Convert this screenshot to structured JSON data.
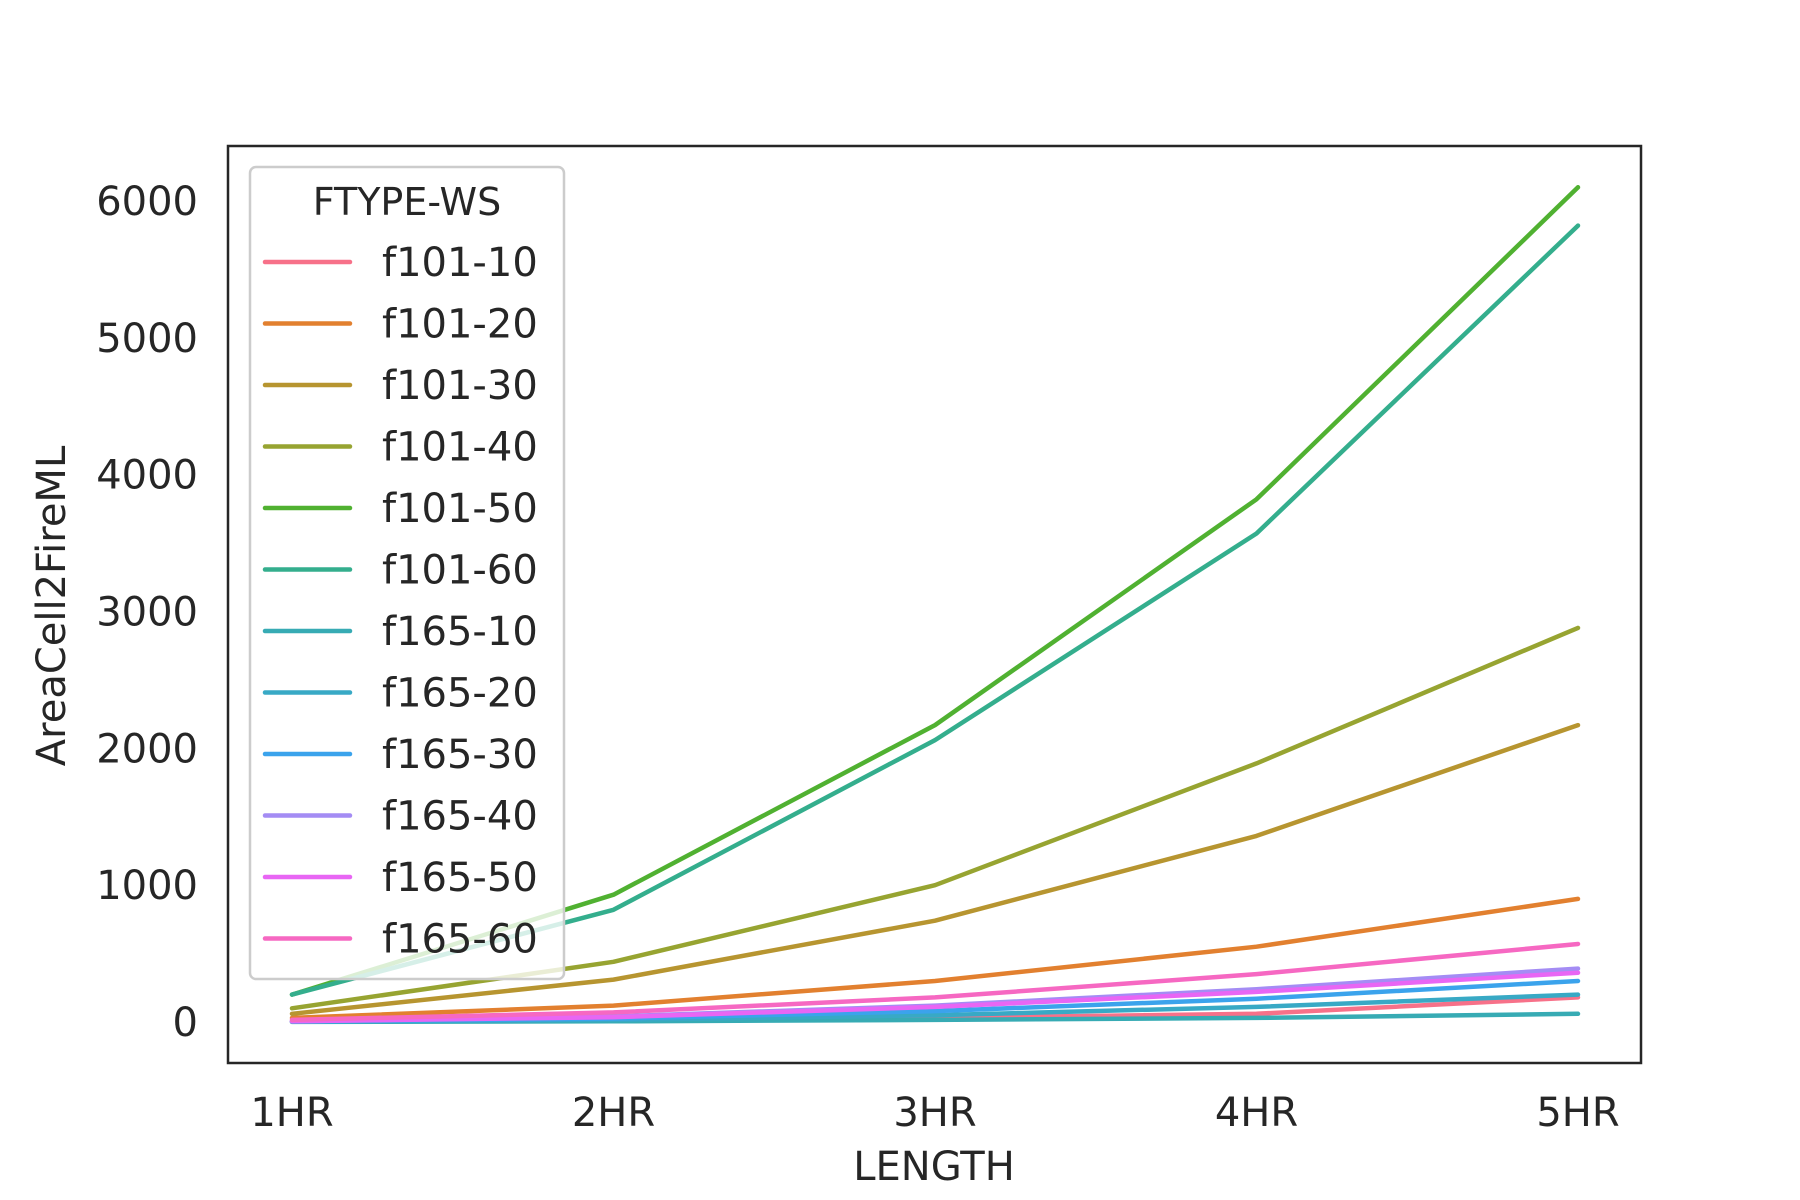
{
  "chart_data": {
    "type": "line",
    "title": "",
    "xlabel": "LENGTH",
    "ylabel": "AreaCell2FireML",
    "categories": [
      "1HR",
      "2HR",
      "3HR",
      "4HR",
      "5HR"
    ],
    "ylim": [
      -300,
      6400
    ],
    "yticks": [
      0,
      1000,
      2000,
      3000,
      4000,
      5000,
      6000
    ],
    "grid": false,
    "legend": {
      "title": "FTYPE-WS",
      "placement": "top-left"
    },
    "series": [
      {
        "name": "f101-10",
        "color": "#f77189",
        "values": [
          2,
          10,
          30,
          60,
          180
        ]
      },
      {
        "name": "f101-20",
        "color": "#e2802f",
        "values": [
          30,
          120,
          300,
          550,
          900
        ]
      },
      {
        "name": "f101-30",
        "color": "#b79530",
        "values": [
          60,
          310,
          740,
          1360,
          2170
        ]
      },
      {
        "name": "f101-40",
        "color": "#97a431",
        "values": [
          100,
          440,
          1000,
          1890,
          2880
        ]
      },
      {
        "name": "f101-50",
        "color": "#50b131",
        "values": [
          200,
          930,
          2170,
          3820,
          6100
        ]
      },
      {
        "name": "f101-60",
        "color": "#34ae8d",
        "values": [
          200,
          820,
          2060,
          3570,
          5820
        ]
      },
      {
        "name": "f165-10",
        "color": "#37abb4",
        "values": [
          1,
          5,
          15,
          30,
          60
        ]
      },
      {
        "name": "f165-20",
        "color": "#38a9c5",
        "values": [
          2,
          15,
          50,
          110,
          200
        ]
      },
      {
        "name": "f165-30",
        "color": "#3ba3ec",
        "values": [
          3,
          25,
          80,
          170,
          300
        ]
      },
      {
        "name": "f165-40",
        "color": "#a48cf4",
        "values": [
          5,
          40,
          120,
          240,
          390
        ]
      },
      {
        "name": "f165-50",
        "color": "#e866f4",
        "values": [
          5,
          35,
          110,
          220,
          360
        ]
      },
      {
        "name": "f165-60",
        "color": "#f668c2",
        "values": [
          15,
          70,
          180,
          350,
          570
        ]
      }
    ]
  }
}
